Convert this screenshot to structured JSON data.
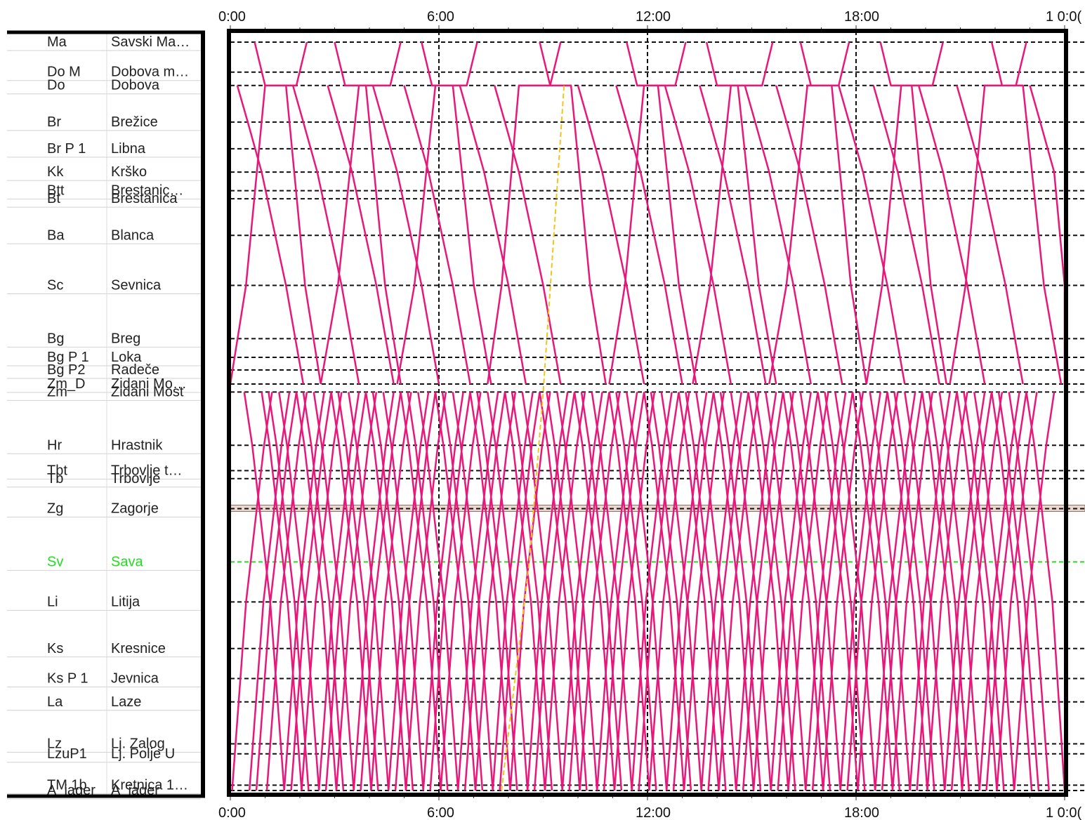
{
  "chart_data": {
    "type": "line",
    "title": "",
    "xlabel": "",
    "ylabel": "",
    "time_axis": {
      "ticks_top": [
        "0:00",
        "6:00",
        "12:00",
        "18:00",
        "1 0:0("
      ],
      "ticks_bottom": [
        "0:00",
        "6:00",
        "12:00",
        "18:00",
        "1 0:0("
      ]
    },
    "stations": [
      {
        "code": "Ma",
        "name": "Savski Ma…",
        "km": 0
      },
      {
        "code": "Do M",
        "name": "Dobova m…",
        "km": 4.5
      },
      {
        "code": "Do",
        "name": "Dobova",
        "km": 6.5
      },
      {
        "code": "Br",
        "name": "Brežice",
        "km": 12
      },
      {
        "code": "Br P 1",
        "name": "Libna",
        "km": 16
      },
      {
        "code": "Kk",
        "name": "Krško",
        "km": 19.5
      },
      {
        "code": "Btt",
        "name": "Brestanic…",
        "km": 22.3
      },
      {
        "code": "Bt",
        "name": "Brestanica",
        "km": 23.5
      },
      {
        "code": "Ba",
        "name": "Blanca",
        "km": 29
      },
      {
        "code": "Sc",
        "name": "Sevnica",
        "km": 36.5
      },
      {
        "code": "Bg",
        "name": "Breg",
        "km": 44.5
      },
      {
        "code": "Bg P 1",
        "name": "Loka",
        "km": 47.3
      },
      {
        "code": "Bg P2",
        "name": "Radeče",
        "km": 49.2
      },
      {
        "code": "Zm_D",
        "name": "Zidani Mo…",
        "km": 51.3
      },
      {
        "code": "Zm",
        "name": "Zidani Most",
        "km": 52.5
      },
      {
        "code": "Hr",
        "name": "Hrastnik",
        "km": 60.5
      },
      {
        "code": "Tbt",
        "name": "Trbovlje t…",
        "km": 64.3
      },
      {
        "code": "Tb",
        "name": "Trbovlje",
        "km": 65.5
      },
      {
        "code": "Zg",
        "name": "Zagorje",
        "km": 70
      },
      {
        "code": "Sv",
        "name": "Sava",
        "km": 78,
        "highlight": "#22dd22"
      },
      {
        "code": "Li",
        "name": "Litija",
        "km": 84
      },
      {
        "code": "Ks",
        "name": "Kresnice",
        "km": 91
      },
      {
        "code": "Ks P 1",
        "name": "Jevnica",
        "km": 95.5
      },
      {
        "code": "La",
        "name": "Laze",
        "km": 99
      },
      {
        "code": "Lz",
        "name": "Lj. Zalog",
        "km": 105.3
      },
      {
        "code": "LzuP1",
        "name": "Lj. Polje U",
        "km": 106.8
      },
      {
        "code": "TM 1b",
        "name": "Kretnica 1…",
        "km": 111.5
      },
      {
        "code": "A_jager",
        "name": "A_jager",
        "km": 112.3
      }
    ],
    "grid": true,
    "train_line_color": "#e8177a",
    "special_train_color": "#f2c41c",
    "highlight_band_station": "Zg",
    "valley_trains_depart_hours": [
      0.05,
      0.55,
      0.75,
      1.05,
      1.55,
      1.75,
      2.05,
      2.55,
      2.75,
      3.05,
      3.55,
      3.75,
      4.05,
      4.55,
      4.75,
      5.05,
      5.55,
      5.75,
      6.05,
      6.55,
      6.75,
      7.05,
      7.55,
      7.75,
      8.05,
      8.55,
      8.75,
      9.05,
      9.55,
      9.75,
      10.05,
      10.55,
      10.75,
      11.05,
      11.55,
      11.75,
      12.05,
      12.55,
      12.75,
      13.05,
      13.55,
      13.75,
      14.05,
      14.55,
      14.75,
      15.05,
      15.55,
      15.75,
      16.05,
      16.55,
      16.75,
      17.05,
      17.55,
      17.75,
      18.05,
      18.55,
      18.75,
      19.05,
      19.55,
      19.75,
      20.05,
      20.55,
      20.75,
      21.05,
      21.55,
      21.75,
      22.05,
      22.55
    ],
    "border_trains": [
      {
        "dir": "up",
        "depart": 0.0,
        "arrive": 1.0
      },
      {
        "dir": "down",
        "depart": 1.6,
        "arrive": 2.6
      },
      {
        "dir": "up",
        "depart": 2.6,
        "arrive": 3.7
      },
      {
        "dir": "down",
        "depart": 3.9,
        "arrive": 4.9
      },
      {
        "dir": "up",
        "depart": 4.8,
        "arrive": 5.9
      },
      {
        "dir": "down",
        "depart": 6.4,
        "arrive": 7.5
      },
      {
        "dir": "up",
        "depart": 7.4,
        "arrive": 8.3
      },
      {
        "dir": "down",
        "depart": 9.8,
        "arrive": 10.8
      },
      {
        "dir": "up",
        "depart": 10.9,
        "arrive": 11.9
      },
      {
        "dir": "down",
        "depart": 12.3,
        "arrive": 13.4
      },
      {
        "dir": "up",
        "depart": 13.3,
        "arrive": 14.4
      },
      {
        "dir": "down",
        "depart": 14.6,
        "arrive": 15.7
      },
      {
        "dir": "up",
        "depart": 15.5,
        "arrive": 16.6
      },
      {
        "dir": "down",
        "depart": 17.3,
        "arrive": 18.3
      },
      {
        "dir": "up",
        "depart": 18.3,
        "arrive": 19.3
      },
      {
        "dir": "down",
        "depart": 19.6,
        "arrive": 20.6
      },
      {
        "dir": "up",
        "depart": 20.7,
        "arrive": 21.7
      },
      {
        "dir": "down",
        "depart": 22.8,
        "arrive": 23.9
      }
    ],
    "special_train": {
      "depart_hours": 7.8,
      "arrive_hours": 9.6
    }
  }
}
